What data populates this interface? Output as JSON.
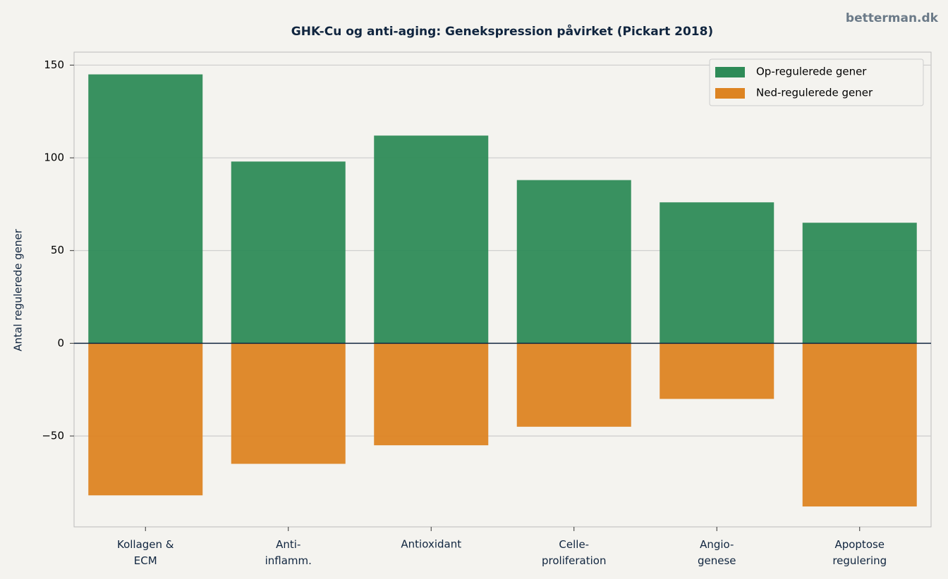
{
  "watermark": "betterman.dk",
  "chart_data": {
    "type": "bar",
    "title": "GHK-Cu og anti-aging: Genekspression påvirket (Pickart 2018)",
    "ylabel": "Antal regulerede gener",
    "categories": [
      "Kollagen &\nECM",
      "Anti-\ninflamm.",
      "Antioxidant",
      "Celle-\nproliferation",
      "Angio-\ngenese",
      "Apoptose\nregulering"
    ],
    "series": [
      {
        "name": "Op-regulerede gener",
        "color": "#2e8b57",
        "values": [
          145,
          98,
          112,
          88,
          76,
          65
        ]
      },
      {
        "name": "Ned-regulerede gener",
        "color": "#dd8422",
        "values": [
          -82,
          -65,
          -55,
          -45,
          -30,
          -88
        ]
      }
    ],
    "ylim": [
      -99,
      157
    ],
    "yticks": [
      {
        "value": -50,
        "label": "−50"
      },
      0,
      50,
      100,
      150
    ],
    "grid": true,
    "legend": "upper right"
  }
}
